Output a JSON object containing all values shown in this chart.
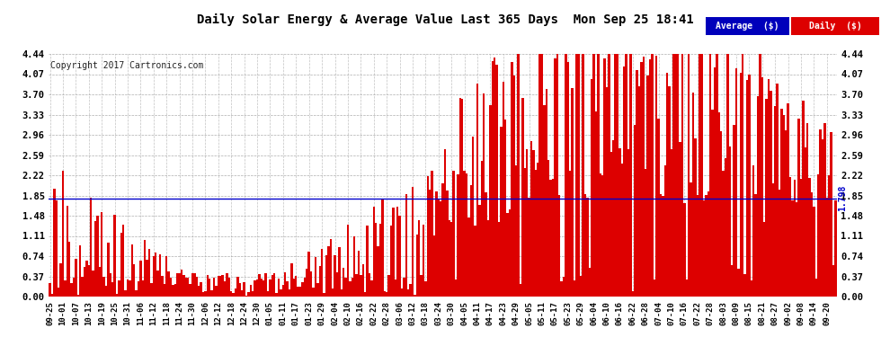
{
  "title": "Daily Solar Energy & Average Value Last 365 Days  Mon Sep 25 18:41",
  "copyright": "Copyright 2017 Cartronics.com",
  "average_value": 1.798,
  "average_label": "1.798",
  "ymax": 4.44,
  "yticks": [
    0.0,
    0.37,
    0.74,
    1.11,
    1.48,
    1.85,
    2.22,
    2.59,
    2.96,
    3.33,
    3.7,
    4.07,
    4.44
  ],
  "bar_color": "#dd0000",
  "average_line_color": "#0000cc",
  "background_color": "#ffffff",
  "grid_color": "#999999",
  "title_color": "#000000",
  "legend_avg_bg": "#0000bb",
  "legend_daily_bg": "#dd0000",
  "x_tick_labels": [
    "09-25",
    "10-01",
    "10-07",
    "10-13",
    "10-19",
    "10-25",
    "10-31",
    "11-06",
    "11-12",
    "11-18",
    "11-24",
    "11-30",
    "12-06",
    "12-12",
    "12-18",
    "12-24",
    "12-30",
    "01-05",
    "01-11",
    "01-17",
    "01-23",
    "01-29",
    "02-04",
    "02-10",
    "02-16",
    "02-22",
    "02-28",
    "03-06",
    "03-12",
    "03-18",
    "03-24",
    "03-30",
    "04-05",
    "04-11",
    "04-17",
    "04-23",
    "04-29",
    "05-05",
    "05-11",
    "05-17",
    "05-23",
    "05-29",
    "06-04",
    "06-10",
    "06-16",
    "06-22",
    "06-28",
    "07-04",
    "07-10",
    "07-16",
    "07-22",
    "07-28",
    "08-03",
    "08-09",
    "08-15",
    "08-21",
    "08-27",
    "09-02",
    "09-08",
    "09-14",
    "09-20"
  ],
  "num_bars": 365
}
